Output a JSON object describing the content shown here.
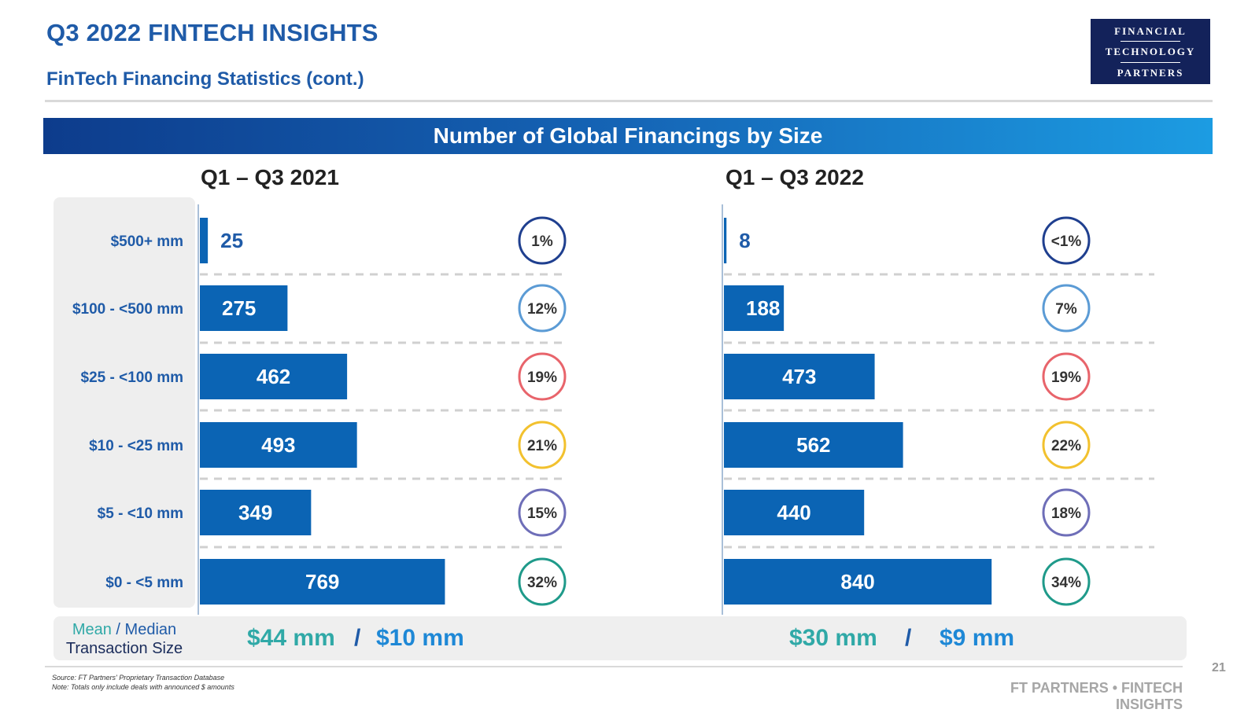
{
  "header": {
    "title": "Q3 2022 FINTECH INSIGHTS",
    "subtitle": "FinTech Financing Statistics (cont.)"
  },
  "logo": {
    "lines": [
      "FINANCIAL",
      "TECHNOLOGY",
      "PARTNERS"
    ]
  },
  "banner": {
    "title": "Number of Global Financings by Size"
  },
  "chart_data": [
    {
      "type": "bar",
      "orientation": "horizontal",
      "title": "Q1 – Q3 2021",
      "categories": [
        "$500+ mm",
        "$100 - <500 mm",
        "$25 - <100 mm",
        "$10 - <25 mm",
        "$5 - <10 mm",
        "$0 - <5 mm"
      ],
      "values": [
        25,
        275,
        462,
        493,
        349,
        769
      ],
      "value_labels": [
        "25",
        "275",
        "462",
        "493",
        "349",
        "769"
      ],
      "shares": [
        "1%",
        "12%",
        "19%",
        "21%",
        "15%",
        "32%"
      ],
      "xlim": [
        0,
        1000
      ]
    },
    {
      "type": "bar",
      "orientation": "horizontal",
      "title": "Q1 – Q3 2022",
      "categories": [
        "$500+ mm",
        "$100 - <500 mm",
        "$25 - <100 mm",
        "$10 - <25 mm",
        "$5 - <10 mm",
        "$0 - <5 mm"
      ],
      "values": [
        8,
        188,
        473,
        562,
        440,
        840
      ],
      "value_labels": [
        "8",
        "188",
        "473",
        "562",
        "440",
        "840"
      ],
      "shares": [
        "<1%",
        "7%",
        "19%",
        "22%",
        "18%",
        "34%"
      ],
      "xlim": [
        0,
        1000
      ]
    }
  ],
  "colors": {
    "bar": "#0b64b4",
    "title_blue": "#1f5ba8",
    "circle_borders": [
      "#1f3f8f",
      "#5b9bd5",
      "#e8646b",
      "#f2c12e",
      "#6e6eb8",
      "#1f9a8a"
    ]
  },
  "summary": {
    "label_mean": "Mean",
    "label_slash": "/",
    "label_median": "Median",
    "label_line2": "Transaction Size",
    "y2021": {
      "mean": "$44 mm",
      "sep": "/",
      "median": "$10 mm"
    },
    "y2022": {
      "mean": "$30 mm",
      "sep": "/",
      "median": "$9 mm"
    }
  },
  "footer": {
    "source_line1": "Source: FT Partners' Proprietary Transaction Database",
    "source_line2": "Note: Totals only include deals with announced $ amounts",
    "brand": "FT PARTNERS • FINTECH INSIGHTS",
    "page": "21"
  }
}
